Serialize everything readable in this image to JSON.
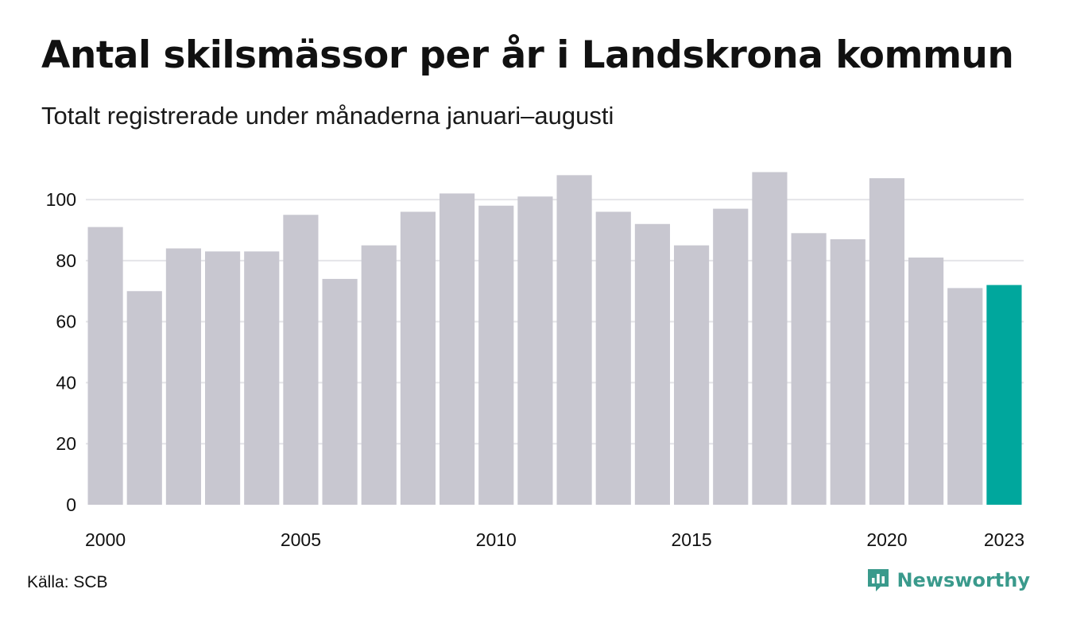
{
  "header": {
    "title": "Antal skilsmässor per år i Landskrona kommun",
    "subtitle": "Totalt registrerade under månaderna januari–augusti"
  },
  "footer": {
    "source": "Källa: SCB",
    "brand": "Newsworthy",
    "brand_icon": "newsworthy-logo-icon"
  },
  "colors": {
    "bar": "#c8c7d0",
    "highlight": "#00a79d",
    "grid": "#e4e4e8",
    "brand": "#3a9a8c"
  },
  "chart_data": {
    "type": "bar",
    "title": "Antal skilsmässor per år i Landskrona kommun",
    "subtitle": "Totalt registrerade under månaderna januari–augusti",
    "xlabel": "",
    "ylabel": "",
    "categories": [
      2000,
      2001,
      2002,
      2003,
      2004,
      2005,
      2006,
      2007,
      2008,
      2009,
      2010,
      2011,
      2012,
      2013,
      2014,
      2015,
      2016,
      2017,
      2018,
      2019,
      2020,
      2021,
      2022,
      2023
    ],
    "values": [
      91,
      70,
      84,
      83,
      83,
      95,
      74,
      85,
      96,
      102,
      98,
      101,
      108,
      96,
      92,
      85,
      97,
      109,
      89,
      87,
      107,
      81,
      71,
      72
    ],
    "highlight_category": 2023,
    "x_tick_labels": [
      "2000",
      "2005",
      "2010",
      "2015",
      "2020",
      "2023"
    ],
    "y_ticks": [
      0,
      20,
      40,
      60,
      80,
      100
    ],
    "ylim": [
      0,
      112
    ],
    "grid": true,
    "legend": "none"
  }
}
